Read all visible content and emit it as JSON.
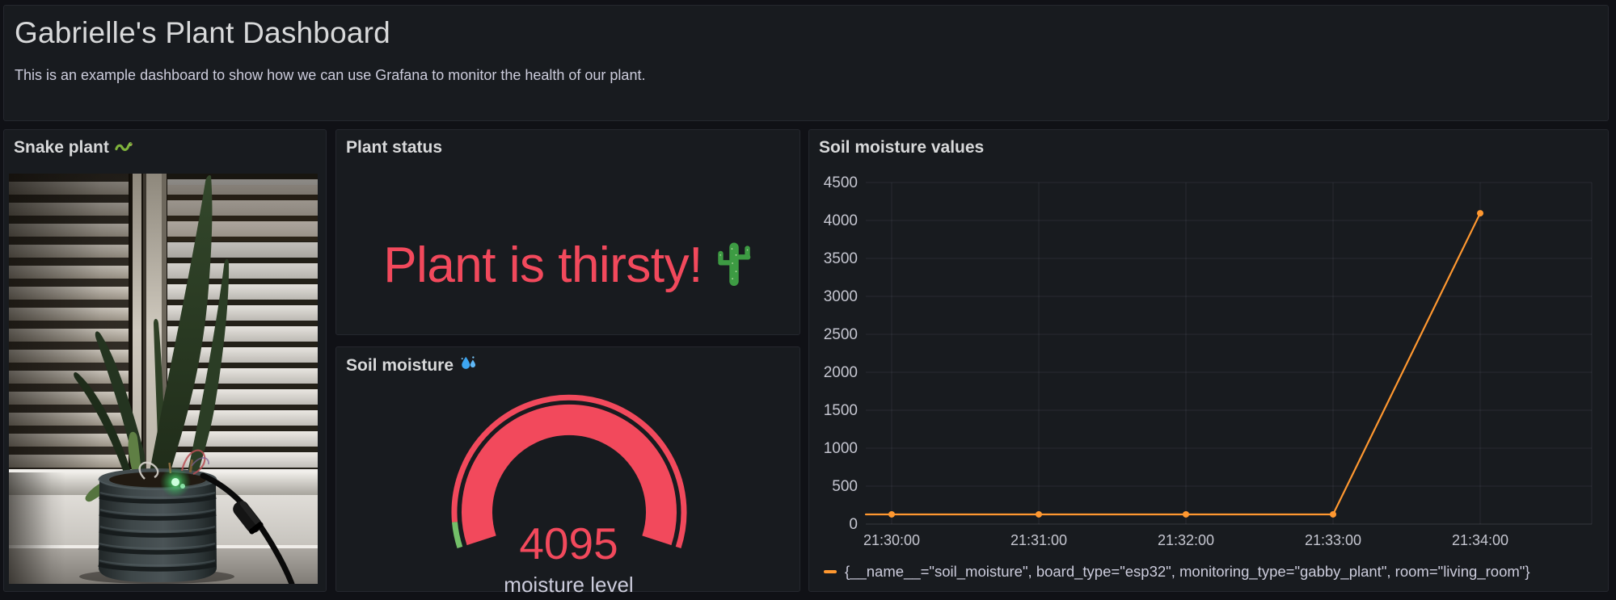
{
  "header": {
    "title": "Gabrielle's Plant Dashboard",
    "description": "This is an example dashboard to show how we can use Grafana to monitor the health of our plant."
  },
  "panels": {
    "snake_plant": {
      "title": "Snake plant",
      "icon": "snake-icon",
      "photo_description": "snake plant in ribbed grey pot on windowsill in front of backlit shutter blinds, soil sensor with green LED and black cable"
    },
    "plant_status": {
      "title": "Plant status",
      "status_text": "Plant is thirsty!",
      "status_color": "#F2495C",
      "icon": "cactus-icon"
    },
    "soil_moisture_gauge": {
      "title": "Soil moisture",
      "icon": "droplets-icon",
      "value": "4095",
      "label": "moisture level",
      "value_color": "#F2495C",
      "threshold_green": "#73BF69",
      "threshold_red": "#F2495C"
    },
    "soil_moisture_chart": {
      "title": "Soil moisture values"
    }
  },
  "chart_data": {
    "type": "line",
    "title": "Soil moisture values",
    "x_labels": [
      "21:30:00",
      "21:31:00",
      "21:32:00",
      "21:33:00",
      "21:34:00"
    ],
    "values": [
      128,
      128,
      128,
      128,
      4095
    ],
    "edge_start_value": 128,
    "ylim": [
      0,
      4500
    ],
    "yticks": [
      0,
      500,
      1000,
      1500,
      2000,
      2500,
      3000,
      3500,
      4000,
      4500
    ],
    "grid": true,
    "legend_position": "bottom",
    "line_color": "#FF9830",
    "series": [
      {
        "name": "{__name__=\"soil_moisture\", board_type=\"esp32\", monitoring_type=\"gabby_plant\", room=\"living_room\"}",
        "color": "#FF9830",
        "values": [
          128,
          128,
          128,
          128,
          4095
        ]
      }
    ]
  }
}
